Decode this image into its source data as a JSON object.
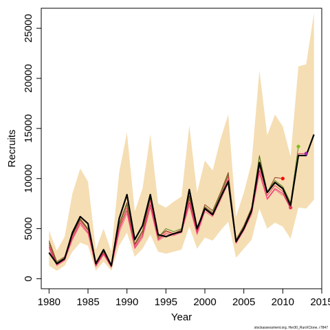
{
  "chart_data": {
    "type": "line",
    "xlabel": "Year",
    "ylabel": "Recruits",
    "xlim": [
      1979,
      2015
    ],
    "ylim": [
      -1000,
      27000
    ],
    "x_ticks": [
      1980,
      1985,
      1990,
      1995,
      2000,
      2005,
      2010,
      2015
    ],
    "y_ticks": [
      0,
      5000,
      10000,
      15000,
      20000,
      25000
    ],
    "x_tick_labels": [
      "1980",
      "1985",
      "1990",
      "1995",
      "2000",
      "2005",
      "2010",
      "2015"
    ],
    "y_tick_labels": [
      "0",
      "5000",
      "10000",
      "15000",
      "20000",
      "25000"
    ],
    "grid": false,
    "band": {
      "color": "#f5deb3",
      "x": [
        1980,
        1981,
        1982,
        1983,
        1984,
        1985,
        1986,
        1987,
        1988,
        1989,
        1990,
        1991,
        1992,
        1993,
        1994,
        1995,
        1996,
        1997,
        1998,
        1999,
        2000,
        2001,
        2002,
        2003,
        2004,
        2005,
        2006,
        2007,
        2008,
        2009,
        2010,
        2011,
        2012,
        2013,
        2014
      ],
      "upper": [
        4800,
        2800,
        4200,
        8500,
        11000,
        9700,
        2900,
        5000,
        2700,
        10600,
        14600,
        6700,
        9000,
        14400,
        7500,
        7100,
        7700,
        8200,
        15300,
        8600,
        11800,
        10800,
        13900,
        16400,
        6200,
        8600,
        11600,
        20800,
        14300,
        16400,
        15200,
        12200,
        21200,
        21400,
        26500
      ],
      "lower": [
        1300,
        800,
        1300,
        2700,
        3600,
        3300,
        800,
        1700,
        800,
        3300,
        4600,
        2200,
        3000,
        4400,
        2700,
        2500,
        2700,
        2900,
        5200,
        3000,
        4100,
        3800,
        4800,
        5700,
        2100,
        3000,
        3900,
        7000,
        5000,
        5600,
        5200,
        4000,
        7100,
        7000,
        7900
      ]
    },
    "series": [
      {
        "color": "#000000",
        "width": 2.2,
        "x": [
          1980,
          1981,
          1982,
          1983,
          1984,
          1985,
          1986,
          1987,
          1988,
          1989,
          1990,
          1991,
          1992,
          1993,
          1994,
          1995,
          1996,
          1997,
          1998,
          1999,
          2000,
          2001,
          2002,
          2003,
          2004,
          2005,
          2006,
          2007,
          2008,
          2009,
          2010,
          2011,
          2012,
          2013,
          2014
        ],
        "values": [
          2600,
          1500,
          2000,
          4600,
          6200,
          5500,
          1500,
          2900,
          1300,
          6000,
          8400,
          3900,
          5300,
          8400,
          4400,
          4200,
          4500,
          4700,
          8900,
          5000,
          7000,
          6400,
          8100,
          9700,
          3700,
          5000,
          6800,
          11600,
          8600,
          9600,
          9000,
          7300,
          12300,
          12300,
          14400
        ]
      },
      {
        "color": "#8b3a1a",
        "width": 0.9,
        "x": [
          1980,
          1981,
          1982,
          1983,
          1984,
          1985,
          1986,
          1987,
          1988,
          1989,
          1990,
          1991,
          1992,
          1993,
          1994,
          1995,
          1996,
          1997,
          1998,
          1999,
          2000,
          2001,
          2002,
          2003,
          2004,
          2005,
          2006,
          2007,
          2008,
          2009,
          2010
        ],
        "values": [
          3800,
          1700,
          2200,
          4400,
          6000,
          5000,
          1500,
          2800,
          1400,
          5500,
          7600,
          3500,
          4800,
          8200,
          4200,
          4800,
          4500,
          4900,
          8300,
          4900,
          7400,
          6800,
          8600,
          10600,
          3900,
          5300,
          7100,
          12200,
          8600,
          10100,
          10000
        ]
      },
      {
        "color": "#4a7a10",
        "width": 0.9,
        "x": [
          1980,
          1981,
          1982,
          1983,
          1984,
          1985,
          1986,
          1987,
          1988,
          1989,
          1990,
          1991,
          1992,
          1993,
          1994,
          1995,
          1996,
          1997,
          1998,
          1999,
          2000,
          2001,
          2002,
          2003,
          2004,
          2005,
          2006,
          2007,
          2008,
          2009,
          2010,
          2011,
          2012
        ],
        "values": [
          3600,
          1600,
          2100,
          4300,
          5900,
          4900,
          1400,
          2700,
          1300,
          5300,
          7400,
          3400,
          4700,
          8000,
          4100,
          5000,
          4700,
          5000,
          8100,
          4800,
          7200,
          6600,
          8400,
          10400,
          3800,
          5200,
          7000,
          12300,
          8700,
          9800,
          9200,
          7600,
          13200
        ]
      },
      {
        "color": "#e8365a",
        "width": 0.9,
        "x": [
          1980,
          1981,
          1982,
          1983,
          1984,
          1985,
          1986,
          1987,
          1988,
          1989,
          1990,
          1991,
          1992,
          1993,
          1994,
          1995,
          1996,
          1997,
          1998,
          1999,
          2000,
          2001,
          2002,
          2003,
          2004,
          2005,
          2006,
          2007,
          2008,
          2009,
          2010,
          2011
        ],
        "values": [
          3400,
          1500,
          2000,
          4200,
          5800,
          4800,
          1400,
          2600,
          1300,
          5100,
          7100,
          3300,
          4500,
          7800,
          4000,
          4700,
          4500,
          4800,
          7900,
          4700,
          7100,
          6500,
          8200,
          10200,
          3700,
          5100,
          6800,
          11200,
          8300,
          9300,
          8700,
          7100
        ]
      },
      {
        "color": "#d81b60",
        "width": 0.9,
        "x": [
          1980,
          1981,
          1982,
          1983,
          1984,
          1985,
          1986,
          1987,
          1988,
          1989,
          1990,
          1991,
          1992,
          1993,
          1994,
          1995,
          1996,
          1997,
          1998,
          1999,
          2000,
          2001,
          2002,
          2003,
          2004,
          2005,
          2006,
          2007,
          2008,
          2009,
          2010,
          2011,
          2012,
          2013
        ],
        "values": [
          3200,
          1400,
          1900,
          4000,
          5600,
          4600,
          1300,
          2500,
          1200,
          4900,
          6800,
          3100,
          4300,
          7400,
          3900,
          4500,
          4400,
          4700,
          7600,
          4500,
          6900,
          6300,
          8000,
          9900,
          3600,
          4900,
          6600,
          10800,
          8000,
          9000,
          8500,
          7000,
          12500,
          12500
        ]
      },
      {
        "color": "#ff5c8a",
        "width": 0.9,
        "x": [
          1980,
          1981,
          1982,
          1983,
          1984,
          1985,
          1986,
          1987,
          1988,
          1989,
          1990,
          1991,
          1992,
          1993,
          1994,
          1995,
          1996,
          1997,
          1998,
          1999,
          2000,
          2001,
          2002,
          2003,
          2004,
          2005,
          2006,
          2007,
          2008,
          2009,
          2010
        ],
        "values": [
          3000,
          1300,
          1800,
          3900,
          5400,
          4500,
          1200,
          2400,
          1100,
          4600,
          6500,
          3000,
          4100,
          7100,
          3800,
          4300,
          4300,
          4600,
          7300,
          4400,
          6700,
          6200,
          7800,
          9600,
          3500,
          4800,
          6400,
          10500,
          7900,
          8900,
          8300
        ]
      }
    ],
    "endpoints": [
      {
        "x": 2010,
        "y": 10000,
        "color": "#ff0000"
      },
      {
        "x": 2011,
        "y": 7100,
        "color": "#e8365a"
      },
      {
        "x": 2012,
        "y": 13200,
        "color": "#7cc01a"
      },
      {
        "x": 2013,
        "y": 12500,
        "color": "#9c27b0"
      }
    ]
  },
  "footer": {
    "text": "stockassessment.org, Her30_RunXClone, r7847"
  }
}
